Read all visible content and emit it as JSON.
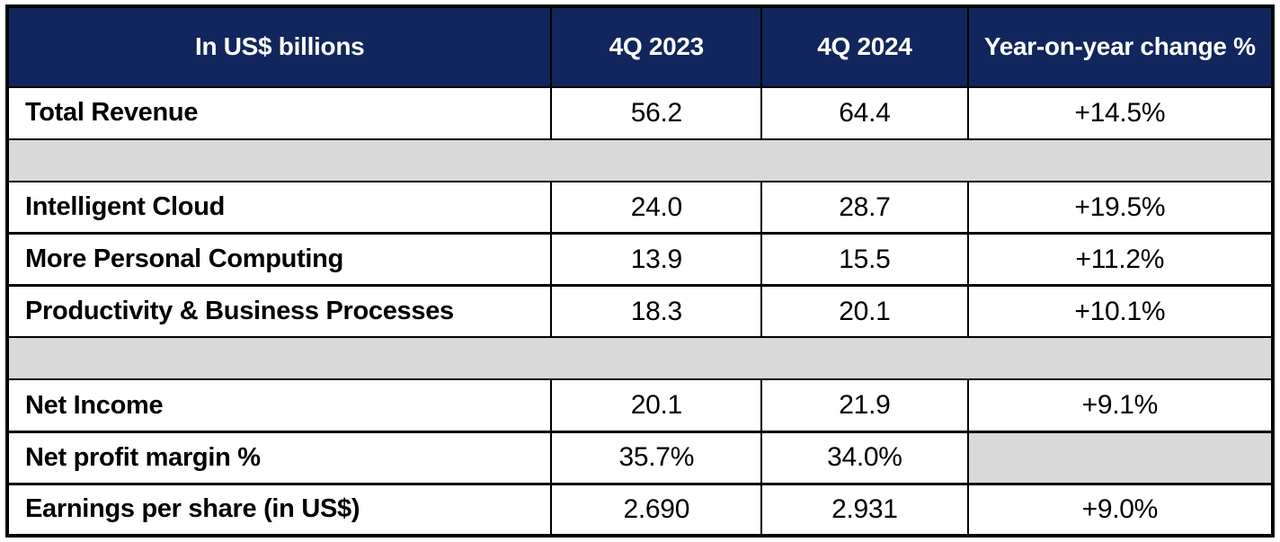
{
  "colors": {
    "header_bg": "#10265c",
    "header_text": "#ffffff",
    "spacer_bg": "#d9d9d9",
    "border_color": "#000000",
    "body_text": "#000000"
  },
  "chart_data": {
    "type": "table",
    "title": "In US$ billions",
    "columns": [
      "In US$ billions",
      "4Q 2023",
      "4Q 2024",
      "Year-on-year change %"
    ],
    "rows": [
      {
        "type": "data",
        "label": "Total Revenue",
        "values": [
          "56.2",
          "64.4",
          "+14.5%"
        ]
      },
      {
        "type": "spacer"
      },
      {
        "type": "data",
        "label": "Intelligent Cloud",
        "values": [
          "24.0",
          "28.7",
          "+19.5%"
        ]
      },
      {
        "type": "data",
        "label": "More Personal Computing",
        "values": [
          "13.9",
          "15.5",
          "+11.2%"
        ]
      },
      {
        "type": "data",
        "label": "Productivity & Business Processes",
        "values": [
          "18.3",
          "20.1",
          "+10.1%"
        ]
      },
      {
        "type": "spacer"
      },
      {
        "type": "data",
        "label": "Net Income",
        "values": [
          "20.1",
          "21.9",
          "+9.1%"
        ]
      },
      {
        "type": "data",
        "label": "Net profit margin %",
        "values": [
          "35.7%",
          "34.0%",
          null
        ]
      },
      {
        "type": "data",
        "label": "Earnings per share (in US$)",
        "values": [
          "2.690",
          "2.931",
          "+9.0%"
        ]
      }
    ],
    "layout": {
      "grid": "on",
      "header_style": "navy background, white bold text",
      "spacer_rows": "full-width light gray bands without column dividers",
      "empty_cells": "Net profit margin % year-on-year cell is gray and empty"
    }
  }
}
